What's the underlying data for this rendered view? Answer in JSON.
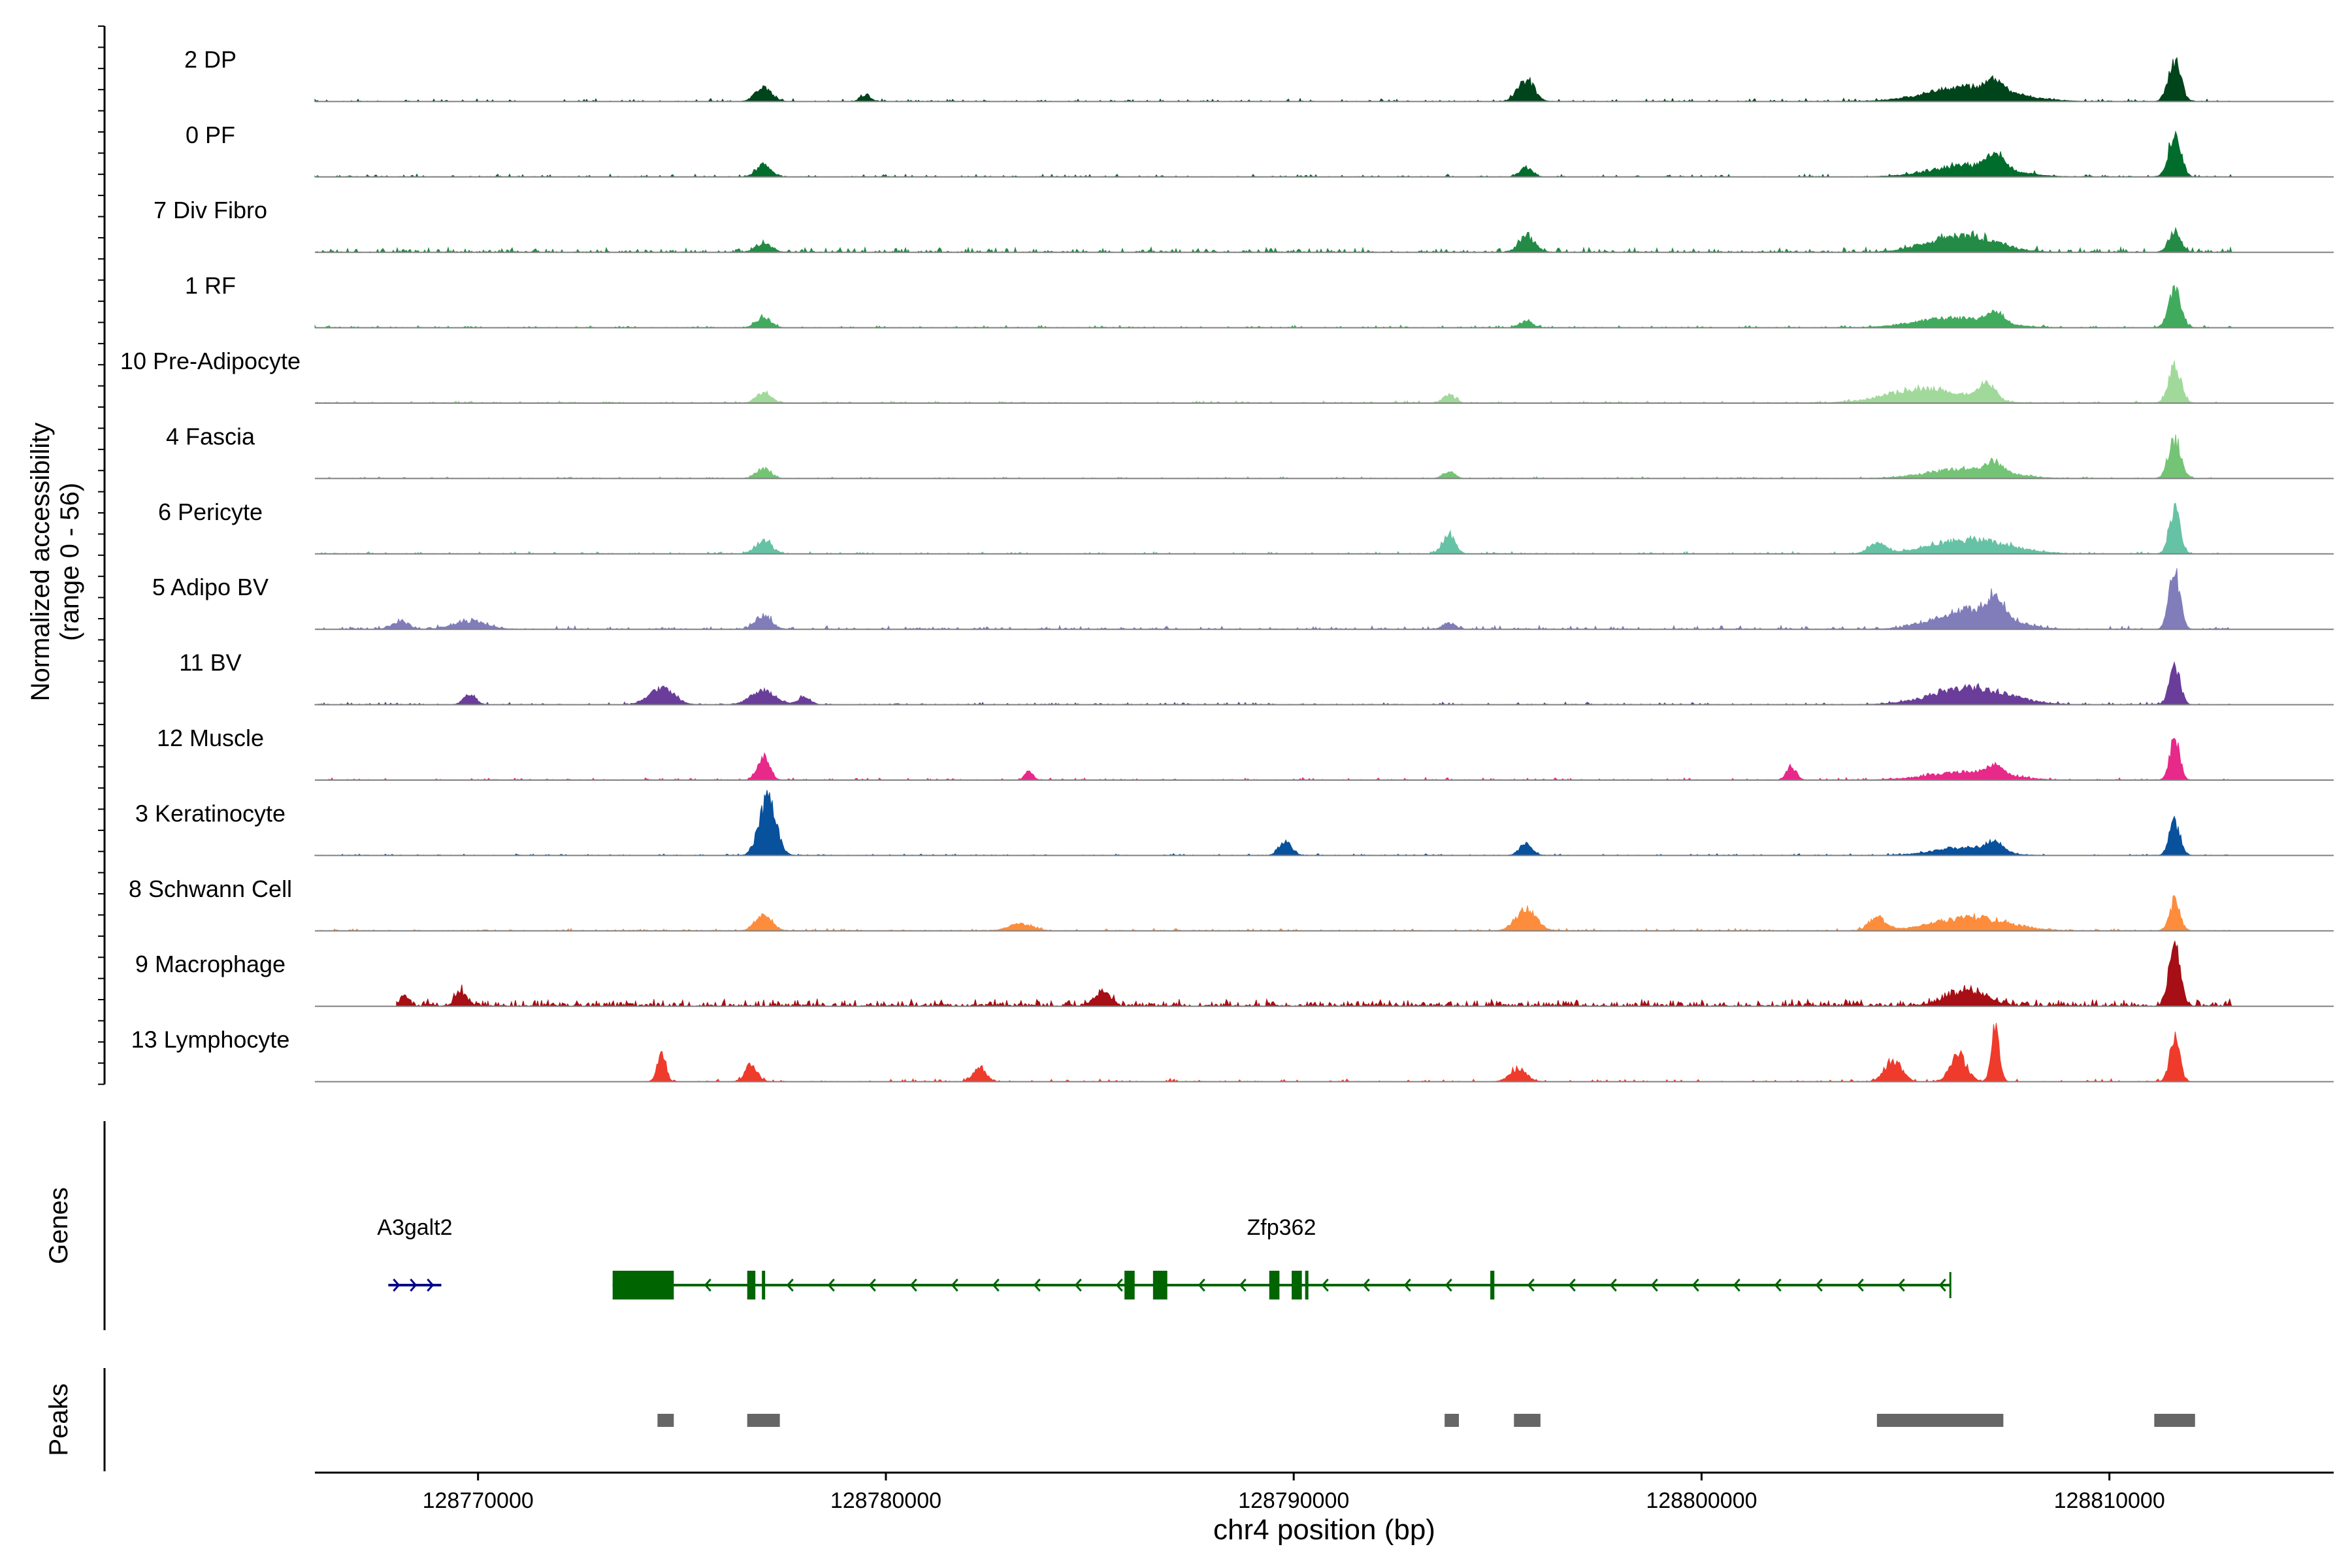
{
  "chart_data": {
    "type": "area",
    "title": "",
    "ylabel_line1": "Normalized accessibility",
    "ylabel_line2": "(range 0 - 56)",
    "y_range": [
      0,
      56
    ],
    "xlabel": "chr4 position (bp)",
    "x_range": [
      128766000,
      128815500
    ],
    "x_ticks": [
      {
        "value": 128770000,
        "label": "128770000"
      },
      {
        "value": 128780000,
        "label": "128780000"
      },
      {
        "value": 128790000,
        "label": "128790000"
      },
      {
        "value": 128800000,
        "label": "128800000"
      },
      {
        "value": 128810000,
        "label": "128810000"
      }
    ],
    "tracks": [
      {
        "label": "2 DP",
        "color": "#00441b",
        "start": 128766000,
        "end": 128813000,
        "noise": 0.05,
        "density": 0.3,
        "peaks": [
          [
            128777000,
            0.2,
            200
          ],
          [
            128779500,
            0.1,
            120
          ],
          [
            128795700,
            0.33,
            200
          ],
          [
            128806600,
            0.22,
            1000
          ],
          [
            128807200,
            0.15,
            200
          ],
          [
            128811600,
            0.6,
            150
          ]
        ]
      },
      {
        "label": "0 PF",
        "color": "#006d2c",
        "start": 128766000,
        "end": 128813000,
        "noise": 0.05,
        "density": 0.3,
        "peaks": [
          [
            128777000,
            0.18,
            180
          ],
          [
            128795700,
            0.15,
            150
          ],
          [
            128806600,
            0.18,
            900
          ],
          [
            128807200,
            0.2,
            200
          ],
          [
            128811600,
            0.65,
            150
          ]
        ]
      },
      {
        "label": "7 Div Fibro",
        "color": "#238b45",
        "start": 128766000,
        "end": 128813000,
        "noise": 0.08,
        "density": 0.5,
        "peaks": [
          [
            128777000,
            0.12,
            200
          ],
          [
            128795700,
            0.25,
            180
          ],
          [
            128806400,
            0.25,
            800
          ],
          [
            128811600,
            0.3,
            150
          ]
        ]
      },
      {
        "label": "1 RF",
        "color": "#41ab5d",
        "start": 128766000,
        "end": 128813000,
        "noise": 0.04,
        "density": 0.3,
        "peaks": [
          [
            128777000,
            0.15,
            180
          ],
          [
            128795700,
            0.1,
            150
          ],
          [
            128806200,
            0.15,
            900
          ],
          [
            128807200,
            0.18,
            200
          ],
          [
            128811600,
            0.55,
            150
          ]
        ]
      },
      {
        "label": "10 Pre-Adipocyte",
        "color": "#a1d99b",
        "start": 128766000,
        "end": 128813000,
        "noise": 0.04,
        "density": 0.4,
        "peaks": [
          [
            128777000,
            0.15,
            180
          ],
          [
            128793800,
            0.12,
            150
          ],
          [
            128805500,
            0.22,
            900
          ],
          [
            128807000,
            0.25,
            200
          ],
          [
            128811600,
            0.55,
            150
          ]
        ]
      },
      {
        "label": "4 Fascia",
        "color": "#74c476",
        "start": 128766000,
        "end": 128813000,
        "noise": 0.03,
        "density": 0.3,
        "peaks": [
          [
            128777000,
            0.15,
            180
          ],
          [
            128793800,
            0.1,
            150
          ],
          [
            128806500,
            0.15,
            900
          ],
          [
            128807200,
            0.15,
            200
          ],
          [
            128811600,
            0.6,
            150
          ]
        ]
      },
      {
        "label": "6 Pericyte",
        "color": "#66c2a4",
        "start": 128766000,
        "end": 128813000,
        "noise": 0.04,
        "density": 0.3,
        "peaks": [
          [
            128777000,
            0.2,
            200
          ],
          [
            128793800,
            0.3,
            150
          ],
          [
            128804300,
            0.15,
            200
          ],
          [
            128806600,
            0.22,
            900
          ],
          [
            128811600,
            0.7,
            130
          ]
        ]
      },
      {
        "label": "5 Adipo BV",
        "color": "#807dba",
        "start": 128766000,
        "end": 128813000,
        "noise": 0.06,
        "density": 0.4,
        "peaks": [
          [
            128768100,
            0.12,
            200
          ],
          [
            128769800,
            0.12,
            400
          ],
          [
            128777000,
            0.2,
            200
          ],
          [
            128793800,
            0.1,
            150
          ],
          [
            128806600,
            0.3,
            800
          ],
          [
            128807200,
            0.3,
            200
          ],
          [
            128811600,
            0.85,
            130
          ]
        ]
      },
      {
        "label": "11 BV",
        "color": "#6a3d9a",
        "start": 128766000,
        "end": 128813000,
        "noise": 0.04,
        "density": 0.35,
        "peaks": [
          [
            128769800,
            0.15,
            150
          ],
          [
            128774500,
            0.25,
            300
          ],
          [
            128777000,
            0.22,
            300
          ],
          [
            128778000,
            0.12,
            150
          ],
          [
            128806600,
            0.25,
            900
          ],
          [
            128811600,
            0.6,
            130
          ]
        ]
      },
      {
        "label": "12 Muscle",
        "color": "#e7298a",
        "start": 128766000,
        "end": 128813000,
        "noise": 0.04,
        "density": 0.3,
        "peaks": [
          [
            128777000,
            0.35,
            150
          ],
          [
            128783500,
            0.12,
            100
          ],
          [
            128802200,
            0.2,
            120
          ],
          [
            128806500,
            0.12,
            900
          ],
          [
            128807200,
            0.15,
            200
          ],
          [
            128811600,
            0.65,
            120
          ]
        ]
      },
      {
        "label": "3 Keratinocyte",
        "color": "#08519c",
        "start": 128766000,
        "end": 128813000,
        "noise": 0.03,
        "density": 0.3,
        "peaks": [
          [
            128777100,
            0.9,
            200
          ],
          [
            128789800,
            0.22,
            150
          ],
          [
            128795700,
            0.2,
            150
          ],
          [
            128806400,
            0.12,
            700
          ],
          [
            128807200,
            0.15,
            200
          ],
          [
            128811600,
            0.5,
            130
          ]
        ]
      },
      {
        "label": "8 Schwann Cell",
        "color": "#fd8d3c",
        "start": 128766000,
        "end": 128813000,
        "noise": 0.04,
        "density": 0.35,
        "peaks": [
          [
            128777000,
            0.22,
            200
          ],
          [
            128783300,
            0.1,
            300
          ],
          [
            128795700,
            0.32,
            250
          ],
          [
            128804300,
            0.2,
            200
          ],
          [
            128806600,
            0.2,
            900
          ],
          [
            128811600,
            0.45,
            130
          ]
        ]
      },
      {
        "label": "9 Macrophage",
        "color": "#a50f15",
        "start": 128768000,
        "end": 128813000,
        "noise": 0.12,
        "density": 0.8,
        "peaks": [
          [
            128768200,
            0.15,
            100
          ],
          [
            128769600,
            0.2,
            150
          ],
          [
            128785300,
            0.22,
            200
          ],
          [
            128806500,
            0.22,
            500
          ],
          [
            128811600,
            0.85,
            140
          ]
        ]
      },
      {
        "label": "13 Lymphocyte",
        "color": "#ef3b2c",
        "start": 128774000,
        "end": 128812000,
        "noise": 0.05,
        "density": 0.25,
        "peaks": [
          [
            128774500,
            0.45,
            100
          ],
          [
            128776700,
            0.25,
            150
          ],
          [
            128782300,
            0.22,
            150
          ],
          [
            128795500,
            0.2,
            200
          ],
          [
            128804700,
            0.35,
            200
          ],
          [
            128806300,
            0.4,
            200
          ],
          [
            128807200,
            0.8,
            100
          ],
          [
            128811600,
            0.65,
            120
          ]
        ]
      }
    ],
    "genes_label": "Genes",
    "genes": [
      {
        "name": "A3galt2",
        "strand": "+",
        "color": "#00008b",
        "start": 128767800,
        "end": 128769100,
        "exons": []
      },
      {
        "name": "Zfp362",
        "strand": "-",
        "color": "#006400",
        "start": 128773300,
        "end": 128806100,
        "exons": [
          [
            128773300,
            128774800
          ],
          [
            128776600,
            128776800
          ],
          [
            128776960,
            128777000
          ],
          [
            128785850,
            128786100
          ],
          [
            128786550,
            128786900
          ],
          [
            128789400,
            128789650
          ],
          [
            128789950,
            128790200
          ],
          [
            128790280,
            128790330
          ],
          [
            128794820,
            128794920
          ]
        ]
      }
    ],
    "peaks_label": "Peaks",
    "peaks_color": "#666666",
    "peak_regions": [
      [
        128774400,
        128774800
      ],
      [
        128776600,
        128777400
      ],
      [
        128793700,
        128794050
      ],
      [
        128795400,
        128796050
      ],
      [
        128804300,
        128807400
      ],
      [
        128811100,
        128812100
      ]
    ]
  }
}
